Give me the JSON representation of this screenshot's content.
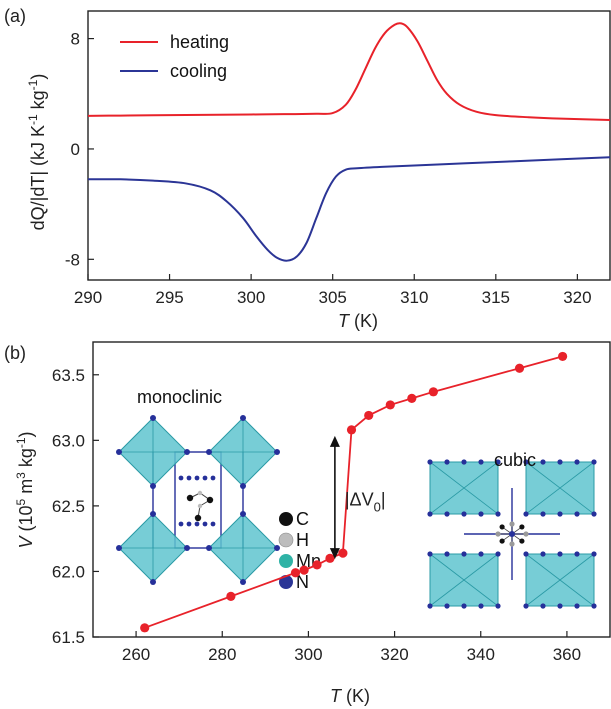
{
  "chart_data": [
    {
      "panel_label": "(a)",
      "type": "line",
      "xlabel": {
        "symbol": "T",
        "unit": "(K)"
      },
      "ylabel": {
        "prefix": "dQ/|dT| (kJ K",
        "sup1": "-1",
        "mid": " kg",
        "sup2": "-1",
        "suffix": ")"
      },
      "xlim": [
        290,
        322
      ],
      "ylim": [
        -9.5,
        10
      ],
      "xticks": [
        290,
        295,
        300,
        305,
        310,
        315,
        320
      ],
      "yticks": [
        8,
        0,
        -8
      ],
      "ytick_labels": [
        "8",
        "0",
        "-8"
      ],
      "legend_position": "top-left",
      "series": [
        {
          "name": "heating",
          "color": "#e8222a",
          "x": [
            290,
            292,
            294,
            296,
            298,
            300,
            302,
            304,
            305,
            305.8,
            306.4,
            307,
            307.6,
            308.2,
            308.8,
            309.2,
            309.6,
            310.2,
            310.8,
            311.4,
            312,
            312.8,
            313.8,
            315,
            317,
            319,
            322
          ],
          "y": [
            2.4,
            2.42,
            2.44,
            2.46,
            2.48,
            2.5,
            2.52,
            2.55,
            2.6,
            3.2,
            4.3,
            5.8,
            7.3,
            8.4,
            9.0,
            9.1,
            8.8,
            7.8,
            6.4,
            5.0,
            4.0,
            3.2,
            2.7,
            2.45,
            2.3,
            2.2,
            2.1
          ]
        },
        {
          "name": "cooling",
          "color": "#2b3596",
          "x": [
            290,
            292,
            294,
            296,
            297.5,
            298.5,
            299.5,
            300.3,
            301,
            301.6,
            302.2,
            302.8,
            303.4,
            304,
            304.6,
            305.2,
            305.8,
            306.5,
            308,
            310,
            313,
            316,
            319,
            322
          ],
          "y": [
            -2.2,
            -2.2,
            -2.3,
            -2.5,
            -3.0,
            -3.8,
            -5.0,
            -6.3,
            -7.3,
            -7.9,
            -8.1,
            -7.8,
            -6.8,
            -5.0,
            -3.2,
            -2.0,
            -1.5,
            -1.4,
            -1.3,
            -1.2,
            -1.05,
            -0.9,
            -0.75,
            -0.6
          ]
        }
      ]
    },
    {
      "panel_label": "(b)",
      "type": "scatter",
      "xlabel": {
        "symbol": "T",
        "unit": "(K)"
      },
      "ylabel": {
        "symbol": "V",
        "prefix": " (10",
        "sup1": "5",
        "mid": " m",
        "sup2": "3",
        "mid2": " kg",
        "sup3": "-1",
        "suffix": ")"
      },
      "xlim": [
        250,
        370
      ],
      "ylim": [
        61.5,
        63.75
      ],
      "xticks": [
        260,
        280,
        300,
        320,
        340,
        360
      ],
      "yticks": [
        61.5,
        62.0,
        62.5,
        63.0,
        63.5
      ],
      "ytick_labels": [
        "61.5",
        "62.0",
        "62.5",
        "63.0",
        "63.5"
      ],
      "series": [
        {
          "color": "#e8222a",
          "x": [
            262,
            282,
            297,
            299,
            302,
            305,
            308,
            310,
            314,
            319,
            324,
            329,
            349,
            359
          ],
          "y": [
            61.57,
            61.81,
            61.99,
            62.01,
            62.05,
            62.1,
            62.14,
            63.08,
            63.19,
            63.27,
            63.32,
            63.37,
            63.55,
            63.64
          ]
        }
      ],
      "annotation": {
        "prefix": "|ΔV",
        "sub": "0",
        "suffix": "|",
        "x": 308,
        "y_from": 62.14,
        "y_to": 63.08
      },
      "phases": {
        "left": "monoclinic",
        "right": "cubic"
      },
      "atom_legend": [
        {
          "label": "C",
          "color": "#111111"
        },
        {
          "label": "H",
          "color": "#bdbdbd"
        },
        {
          "label": "Mn",
          "color": "#2fb3a6"
        },
        {
          "label": "N",
          "color": "#2b3596"
        }
      ]
    }
  ]
}
